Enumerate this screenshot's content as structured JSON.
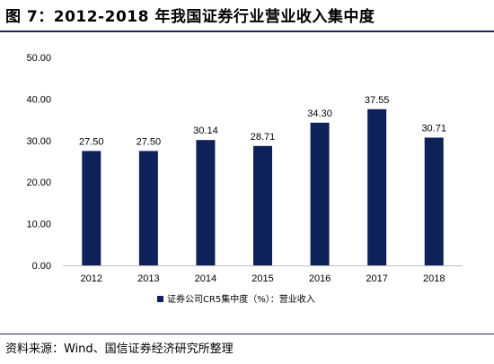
{
  "header": {
    "title": "图 7：2012-2018 年我国证券行业营业收入集中度"
  },
  "footer": {
    "source": "资料来源：Wind、国信证券经济研究所整理"
  },
  "colors": {
    "bar": "#0e2159",
    "axis": "#bfbfbf",
    "text": "#000000"
  },
  "chart_data": {
    "type": "bar",
    "categories": [
      "2012",
      "2013",
      "2014",
      "2015",
      "2016",
      "2017",
      "2018"
    ],
    "series": [
      {
        "name": "证券公司CR5集中度（%）：营业收入",
        "values": [
          27.5,
          27.5,
          30.14,
          28.71,
          34.3,
          37.55,
          30.71
        ],
        "labels": [
          "27.50",
          "27.50",
          "30.14",
          "28.71",
          "34.30",
          "37.55",
          "30.71"
        ]
      }
    ],
    "ylim": [
      0,
      50
    ],
    "yticks": [
      "0.00",
      "10.00",
      "20.00",
      "30.00",
      "40.00",
      "50.00"
    ],
    "grid": false,
    "legend_position": "bottom-center",
    "xlabel": "",
    "ylabel": ""
  }
}
